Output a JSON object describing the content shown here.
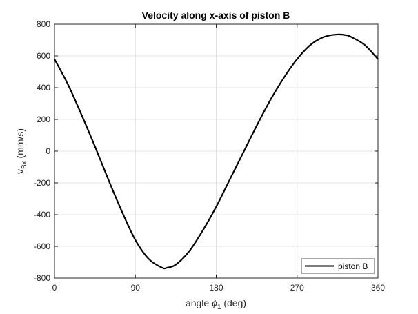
{
  "chart_data": {
    "type": "line",
    "title": "Velocity along x-axis of piston B",
    "xlabel": {
      "prefix": "angle ",
      "symbol": "ϕ",
      "subscript": "1",
      "suffix": " (deg)"
    },
    "ylabel": {
      "prefix": "v",
      "subscript": "Bx",
      "suffix": " (mm/s)"
    },
    "xlim": [
      0,
      360
    ],
    "ylim": [
      -800,
      800
    ],
    "xticks": [
      0,
      90,
      180,
      270,
      360
    ],
    "yticks": [
      -800,
      -600,
      -400,
      -200,
      0,
      200,
      400,
      600,
      800
    ],
    "grid": true,
    "legend_location": "bottom-right",
    "series": [
      {
        "name": "piston B",
        "color": "#000000",
        "x": [
          0,
          15,
          30,
          45,
          60,
          75,
          90,
          105,
          120,
          125,
          135,
          150,
          165,
          180,
          195,
          210,
          225,
          240,
          255,
          270,
          285,
          300,
          315,
          325,
          330,
          345,
          360
        ],
        "y": [
          580,
          420,
          230,
          30,
          -180,
          -380,
          -560,
          -680,
          -735,
          -735,
          -715,
          -630,
          -500,
          -350,
          -180,
          -10,
          160,
          320,
          460,
          580,
          670,
          720,
          735,
          730,
          720,
          670,
          580
        ]
      }
    ]
  }
}
